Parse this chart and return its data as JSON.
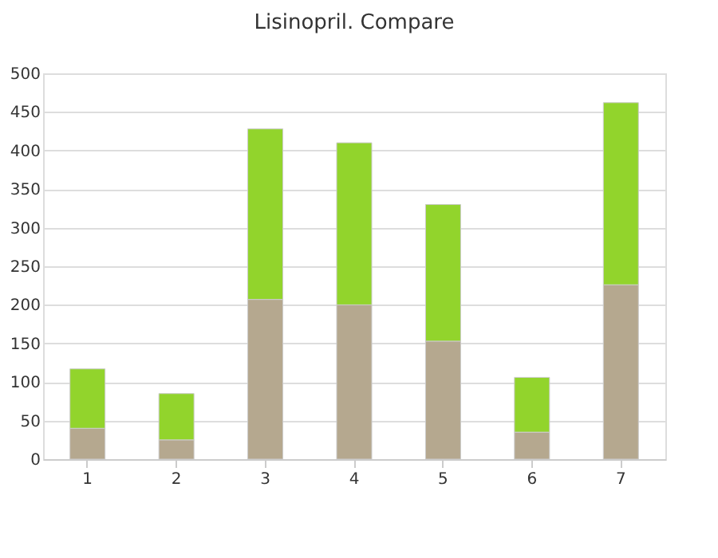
{
  "chart_data": {
    "type": "bar",
    "title": "Lisinopril. Compare",
    "stacked": true,
    "categories": [
      "1",
      "2",
      "3",
      "4",
      "5",
      "6",
      "7"
    ],
    "series": [
      {
        "color": "#b5a88f",
        "values": [
          40,
          25,
          207,
          200,
          153,
          35,
          226
        ]
      },
      {
        "color": "#92d42c",
        "values": [
          77,
          60,
          221,
          210,
          177,
          71,
          236
        ]
      }
    ],
    "ylim": [
      0,
      500
    ],
    "yticks": [
      0,
      50,
      100,
      150,
      200,
      250,
      300,
      350,
      400,
      450,
      500
    ],
    "grid": "y"
  }
}
